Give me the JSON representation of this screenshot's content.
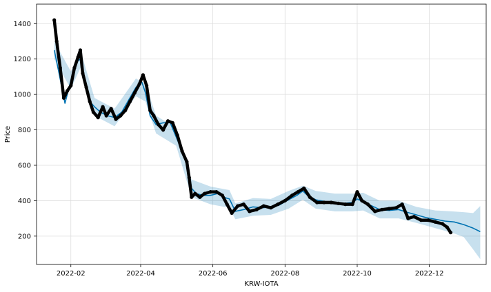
{
  "chart_data": {
    "type": "line",
    "title": "",
    "xlabel": "KRW-IOTA",
    "ylabel": "Price",
    "xlim": [
      "2022-01-03",
      "2023-01-18"
    ],
    "ylim": [
      40,
      1510
    ],
    "x_ticks": [
      "2022-02-01",
      "2022-04-01",
      "2022-06-01",
      "2022-08-01",
      "2022-10-01",
      "2022-12-01"
    ],
    "x_tick_labels": [
      "2022-02",
      "2022-04",
      "2022-06",
      "2022-08",
      "2022-10",
      "2022-12"
    ],
    "y_ticks": [
      200,
      400,
      600,
      800,
      1000,
      1200,
      1400
    ],
    "grid": true,
    "legend": "none",
    "colors": {
      "observed": "#000000",
      "forecast": "#0072B2",
      "uncertainty": "#0072B2"
    },
    "series": [
      {
        "role": "forecast",
        "x": [
          "2022-01-18",
          "2022-01-22",
          "2022-01-27",
          "2022-02-01",
          "2022-02-05",
          "2022-02-09",
          "2022-02-13",
          "2022-02-17",
          "2022-02-21",
          "2022-02-26",
          "2022-03-04",
          "2022-03-10",
          "2022-03-16",
          "2022-03-22",
          "2022-03-28",
          "2022-04-02",
          "2022-04-05",
          "2022-04-09",
          "2022-04-14",
          "2022-04-20",
          "2022-04-26",
          "2022-05-01",
          "2022-05-06",
          "2022-05-11",
          "2022-05-14",
          "2022-05-18",
          "2022-05-24",
          "2022-05-30",
          "2022-06-05",
          "2022-06-10",
          "2022-06-15",
          "2022-06-20",
          "2022-06-27",
          "2022-07-05",
          "2022-07-13",
          "2022-07-20",
          "2022-07-27",
          "2022-08-04",
          "2022-08-11",
          "2022-08-16",
          "2022-08-20",
          "2022-08-27",
          "2022-09-04",
          "2022-09-12",
          "2022-09-20",
          "2022-09-27",
          "2022-10-01",
          "2022-10-06",
          "2022-10-12",
          "2022-10-20",
          "2022-10-28",
          "2022-11-05",
          "2022-11-12",
          "2022-11-20",
          "2022-11-28",
          "2022-12-06",
          "2022-12-14",
          "2022-12-22",
          "2022-12-30",
          "2023-01-07",
          "2023-01-13"
        ],
        "y": [
          1250,
          1120,
          950,
          1080,
          1180,
          1200,
          1080,
          960,
          930,
          900,
          880,
          870,
          900,
          970,
          1040,
          1070,
          1010,
          880,
          830,
          840,
          840,
          760,
          680,
          600,
          470,
          440,
          430,
          430,
          440,
          420,
          410,
          340,
          350,
          365,
          360,
          365,
          375,
          405,
          430,
          455,
          430,
          405,
          395,
          390,
          385,
          390,
          410,
          395,
          375,
          350,
          345,
          350,
          335,
          320,
          305,
          295,
          285,
          280,
          265,
          245,
          225
        ]
      },
      {
        "role": "observed",
        "x": [
          "2022-01-18",
          "2022-01-20",
          "2022-01-23",
          "2022-01-26",
          "2022-01-29",
          "2022-02-01",
          "2022-02-04",
          "2022-02-07",
          "2022-02-09",
          "2022-02-11",
          "2022-02-14",
          "2022-02-17",
          "2022-02-20",
          "2022-02-24",
          "2022-02-28",
          "2022-03-03",
          "2022-03-07",
          "2022-03-11",
          "2022-03-15",
          "2022-03-19",
          "2022-03-23",
          "2022-03-27",
          "2022-03-31",
          "2022-04-03",
          "2022-04-06",
          "2022-04-09",
          "2022-04-12",
          "2022-04-16",
          "2022-04-20",
          "2022-04-24",
          "2022-04-28",
          "2022-05-02",
          "2022-05-06",
          "2022-05-10",
          "2022-05-12",
          "2022-05-14",
          "2022-05-17",
          "2022-05-21",
          "2022-05-25",
          "2022-05-30",
          "2022-06-04",
          "2022-06-09",
          "2022-06-13",
          "2022-06-17",
          "2022-06-22",
          "2022-06-27",
          "2022-07-02",
          "2022-07-08",
          "2022-07-14",
          "2022-07-20",
          "2022-07-26",
          "2022-08-01",
          "2022-08-07",
          "2022-08-12",
          "2022-08-17",
          "2022-08-22",
          "2022-08-28",
          "2022-09-03",
          "2022-09-09",
          "2022-09-15",
          "2022-09-21",
          "2022-09-27",
          "2022-10-01",
          "2022-10-05",
          "2022-10-10",
          "2022-10-16",
          "2022-10-22",
          "2022-10-28",
          "2022-11-03",
          "2022-11-08",
          "2022-11-13",
          "2022-11-18",
          "2022-11-24",
          "2022-11-30",
          "2022-12-06",
          "2022-12-12",
          "2022-12-16",
          "2022-12-19"
        ],
        "y": [
          1420,
          1300,
          1150,
          980,
          1020,
          1050,
          1150,
          1210,
          1250,
          1120,
          1040,
          960,
          900,
          870,
          930,
          880,
          920,
          860,
          880,
          910,
          960,
          1010,
          1060,
          1110,
          1050,
          910,
          880,
          830,
          800,
          850,
          840,
          770,
          680,
          620,
          530,
          420,
          440,
          420,
          440,
          450,
          450,
          430,
          380,
          330,
          370,
          380,
          340,
          350,
          370,
          360,
          380,
          400,
          430,
          450,
          470,
          420,
          390,
          390,
          390,
          385,
          380,
          380,
          450,
          400,
          380,
          340,
          350,
          355,
          360,
          380,
          300,
          310,
          290,
          290,
          280,
          270,
          250,
          220
        ]
      }
    ],
    "uncertainty_band": {
      "x": [
        "2022-01-18",
        "2022-02-01",
        "2022-02-09",
        "2022-02-21",
        "2022-03-10",
        "2022-03-28",
        "2022-04-05",
        "2022-04-14",
        "2022-05-01",
        "2022-05-14",
        "2022-05-30",
        "2022-06-15",
        "2022-06-20",
        "2022-07-05",
        "2022-07-20",
        "2022-08-04",
        "2022-08-16",
        "2022-08-27",
        "2022-09-12",
        "2022-09-27",
        "2022-10-06",
        "2022-10-20",
        "2022-11-05",
        "2022-11-20",
        "2022-12-06",
        "2022-12-20",
        "2022-12-30",
        "2023-01-07",
        "2023-01-13"
      ],
      "lower": [
        1200,
        1030,
        1150,
        880,
        820,
        990,
        960,
        780,
        710,
        420,
        380,
        360,
        295,
        315,
        320,
        355,
        405,
        355,
        340,
        340,
        345,
        300,
        300,
        275,
        245,
        220,
        195,
        125,
        70
      ],
      "upper": [
        1300,
        1130,
        1250,
        980,
        920,
        1090,
        1060,
        880,
        810,
        520,
        480,
        460,
        385,
        415,
        410,
        455,
        485,
        455,
        440,
        440,
        445,
        400,
        400,
        365,
        345,
        340,
        335,
        330,
        370
      ]
    }
  }
}
